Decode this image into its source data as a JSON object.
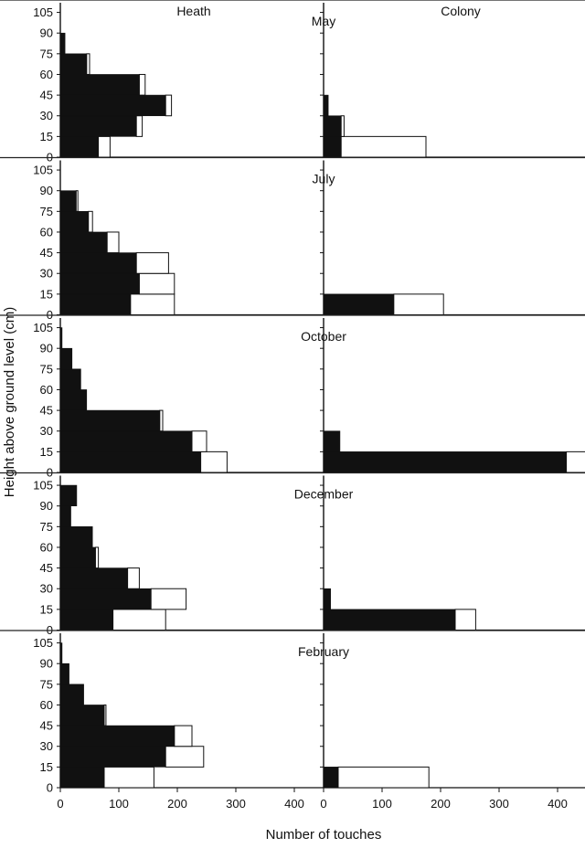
{
  "chart_data": {
    "type": "bar",
    "orientation": "horizontal",
    "stacked": true,
    "xlabel": "Number of touches",
    "ylabel": "Height above ground level (cm)",
    "columns": [
      "Heath",
      "Colony"
    ],
    "x_ticks": [
      0,
      100,
      200,
      300,
      400
    ],
    "xlim": [
      0,
      450
    ],
    "y_ticks": [
      0,
      15,
      30,
      45,
      60,
      75,
      90,
      105
    ],
    "ylim": [
      0,
      112
    ],
    "band_height": 15,
    "series_colors": {
      "filled": "#111111",
      "open": "#ffffff"
    },
    "months": [
      {
        "name": "May",
        "heath": [
          {
            "y": 0,
            "filled": 65,
            "total": 85
          },
          {
            "y": 15,
            "filled": 130,
            "total": 140
          },
          {
            "y": 30,
            "filled": 180,
            "total": 190
          },
          {
            "y": 45,
            "filled": 135,
            "total": 145
          },
          {
            "y": 60,
            "filled": 45,
            "total": 50
          },
          {
            "y": 75,
            "filled": 8,
            "total": 8
          }
        ],
        "colony": [
          {
            "y": 0,
            "filled": 30,
            "total": 175
          },
          {
            "y": 15,
            "filled": 30,
            "total": 35
          },
          {
            "y": 30,
            "filled": 8,
            "total": 8
          }
        ]
      },
      {
        "name": "July",
        "heath": [
          {
            "y": 0,
            "filled": 120,
            "total": 195
          },
          {
            "y": 15,
            "filled": 135,
            "total": 195
          },
          {
            "y": 30,
            "filled": 130,
            "total": 185
          },
          {
            "y": 45,
            "filled": 80,
            "total": 100
          },
          {
            "y": 60,
            "filled": 48,
            "total": 55
          },
          {
            "y": 75,
            "filled": 27,
            "total": 30
          }
        ],
        "colony": [
          {
            "y": 0,
            "filled": 120,
            "total": 205
          }
        ]
      },
      {
        "name": "October",
        "heath": [
          {
            "y": 0,
            "filled": 240,
            "total": 285
          },
          {
            "y": 15,
            "filled": 225,
            "total": 250
          },
          {
            "y": 30,
            "filled": 170,
            "total": 175
          },
          {
            "y": 45,
            "filled": 45,
            "total": 45
          },
          {
            "y": 60,
            "filled": 35,
            "total": 35
          },
          {
            "y": 75,
            "filled": 20,
            "total": 20
          },
          {
            "y": 90,
            "filled": 3,
            "total": 3
          }
        ],
        "colony": [
          {
            "y": 0,
            "filled": 415,
            "total": 450
          },
          {
            "y": 15,
            "filled": 28,
            "total": 28
          }
        ]
      },
      {
        "name": "December",
        "heath": [
          {
            "y": 0,
            "filled": 90,
            "total": 180
          },
          {
            "y": 15,
            "filled": 155,
            "total": 215
          },
          {
            "y": 30,
            "filled": 115,
            "total": 135
          },
          {
            "y": 45,
            "filled": 60,
            "total": 65
          },
          {
            "y": 60,
            "filled": 55,
            "total": 55
          },
          {
            "y": 75,
            "filled": 18,
            "total": 18
          },
          {
            "y": 90,
            "filled": 28,
            "total": 28
          }
        ],
        "colony": [
          {
            "y": 0,
            "filled": 225,
            "total": 260
          },
          {
            "y": 15,
            "filled": 12,
            "total": 12
          }
        ]
      },
      {
        "name": "February",
        "heath": [
          {
            "y": 0,
            "filled": 75,
            "total": 160
          },
          {
            "y": 15,
            "filled": 180,
            "total": 245
          },
          {
            "y": 30,
            "filled": 195,
            "total": 225
          },
          {
            "y": 45,
            "filled": 75,
            "total": 78
          },
          {
            "y": 60,
            "filled": 40,
            "total": 40
          },
          {
            "y": 75,
            "filled": 15,
            "total": 15
          },
          {
            "y": 90,
            "filled": 3,
            "total": 3
          }
        ],
        "colony": [
          {
            "y": 0,
            "filled": 25,
            "total": 180
          }
        ]
      }
    ]
  }
}
